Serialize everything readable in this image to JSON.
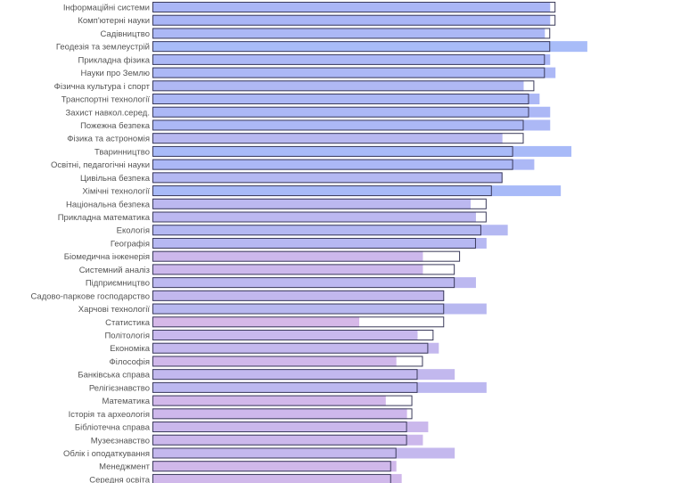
{
  "chart_data": {
    "type": "bar",
    "orientation": "horizontal",
    "title": "",
    "xlabel": "",
    "ylabel": "",
    "xlim": [
      0,
      100
    ],
    "grid": false,
    "legend": "none",
    "series": [
      {
        "name": "filled",
        "style": "filled"
      },
      {
        "name": "outline",
        "style": "outline"
      }
    ],
    "rows": [
      {
        "label": "Інформаційні системи",
        "filled": 75,
        "outline": 76,
        "color": "#aab6f6"
      },
      {
        "label": "Комп'ютерні науки",
        "filled": 75,
        "outline": 76,
        "color": "#aab6f6"
      },
      {
        "label": "Садівництво",
        "filled": 74,
        "outline": 75,
        "color": "#acb8f6"
      },
      {
        "label": "Геодезія та землеустрій",
        "filled": 82,
        "outline": 75,
        "color": "#a8bcf8"
      },
      {
        "label": "Прикладна фізика",
        "filled": 75,
        "outline": 74,
        "color": "#acb8f6"
      },
      {
        "label": "Науки про Землю",
        "filled": 76,
        "outline": 74,
        "color": "#acb8f6"
      },
      {
        "label": "Фізична культура і спорт",
        "filled": 70,
        "outline": 72,
        "color": "#b0b8f4"
      },
      {
        "label": "Транспортні технології",
        "filled": 73,
        "outline": 71,
        "color": "#acb8f6"
      },
      {
        "label": "Захист навкол.серед.",
        "filled": 75,
        "outline": 71,
        "color": "#acb8f6"
      },
      {
        "label": "Пожежна безпека",
        "filled": 75,
        "outline": 70,
        "color": "#acb8f6"
      },
      {
        "label": "Фізика та астрономія",
        "filled": 66,
        "outline": 70,
        "color": "#b8b8f0"
      },
      {
        "label": "Тваринництво",
        "filled": 79,
        "outline": 68,
        "color": "#a8baf8"
      },
      {
        "label": "Освітні, педагогічні науки",
        "filled": 72,
        "outline": 68,
        "color": "#acb8f6"
      },
      {
        "label": "Цивільна безпека",
        "filled": 66,
        "outline": 66,
        "color": "#b4b8f2"
      },
      {
        "label": "Хімічні технології",
        "filled": 77,
        "outline": 64,
        "color": "#a8baf8"
      },
      {
        "label": "Національна безпека",
        "filled": 60,
        "outline": 63,
        "color": "#bcb8f0"
      },
      {
        "label": "Прикладна математика",
        "filled": 61,
        "outline": 63,
        "color": "#bcb8f0"
      },
      {
        "label": "Екологія",
        "filled": 67,
        "outline": 62,
        "color": "#b4b8f2"
      },
      {
        "label": "Географія",
        "filled": 63,
        "outline": 61,
        "color": "#b6b8f2"
      },
      {
        "label": "Біомедична інженерія",
        "filled": 51,
        "outline": 58,
        "color": "#ccb8ec"
      },
      {
        "label": "Системний аналіз",
        "filled": 51,
        "outline": 57,
        "color": "#ccb8ec"
      },
      {
        "label": "Підприємництво",
        "filled": 61,
        "outline": 57,
        "color": "#bcb8f0"
      },
      {
        "label": "Садово-паркове господарство",
        "filled": 55,
        "outline": 55,
        "color": "#c2b8ee"
      },
      {
        "label": "Харчові технології",
        "filled": 63,
        "outline": 55,
        "color": "#b8b8f0"
      },
      {
        "label": "Статистика",
        "filled": 39,
        "outline": 55,
        "color": "#d6b8e8"
      },
      {
        "label": "Політологія",
        "filled": 50,
        "outline": 53,
        "color": "#c8b8ee"
      },
      {
        "label": "Економіка",
        "filled": 54,
        "outline": 52,
        "color": "#c4b8ee"
      },
      {
        "label": "Філософія",
        "filled": 46,
        "outline": 51,
        "color": "#d0b8ea"
      },
      {
        "label": "Банківська справа",
        "filled": 57,
        "outline": 50,
        "color": "#c2b8ee"
      },
      {
        "label": "Релігієзнавство",
        "filled": 63,
        "outline": 50,
        "color": "#bcb8f0"
      },
      {
        "label": "Математика",
        "filled": 44,
        "outline": 49,
        "color": "#d2b8ea"
      },
      {
        "label": "Історія та археологія",
        "filled": 48,
        "outline": 49,
        "color": "#ceb8ec"
      },
      {
        "label": "Бібліотечна справа",
        "filled": 52,
        "outline": 48,
        "color": "#cab8ec"
      },
      {
        "label": "Музеєзнавство",
        "filled": 51,
        "outline": 48,
        "color": "#ccb8ec"
      },
      {
        "label": "Облік і оподаткування",
        "filled": 57,
        "outline": 46,
        "color": "#c4b8ee"
      },
      {
        "label": "Менеджмент",
        "filled": 46,
        "outline": 45,
        "color": "#d0b8ea"
      },
      {
        "label": "Середня освіта",
        "filled": 47,
        "outline": 45,
        "color": "#d0b8ea"
      }
    ]
  }
}
